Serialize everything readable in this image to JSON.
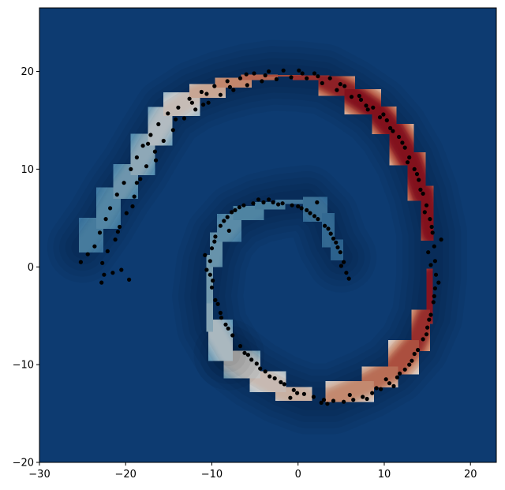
{
  "chart_data": {
    "type": "scatter",
    "title": "",
    "xlabel": "",
    "ylabel": "",
    "xlim": [
      -30,
      23
    ],
    "ylim": [
      -20,
      26.5
    ],
    "grid": false,
    "legend": "none",
    "colormap": "RdBu_r",
    "background_color": "#0d3b71",
    "point_color": "#000000",
    "x_ticks": [
      -30,
      -20,
      -10,
      0,
      10,
      20
    ],
    "y_ticks": [
      -20,
      -10,
      0,
      10,
      20
    ],
    "x_tick_labels": [
      "−30",
      "−20",
      "−10",
      "0",
      "10",
      "20"
    ],
    "y_tick_labels": [
      "−20",
      "−10",
      "0",
      "10",
      "20"
    ],
    "density_contours": {
      "description_levels": "filled density contours following the spiral arms",
      "ridge_outer": [
        [
          -25,
          2
        ],
        [
          -23,
          4.5
        ],
        [
          -21,
          7.5
        ],
        [
          -19,
          10
        ],
        [
          -17,
          13
        ],
        [
          -15,
          15.8
        ],
        [
          -12,
          17.5
        ],
        [
          -9,
          18.5
        ],
        [
          -6,
          19.2
        ],
        [
          -3,
          19.6
        ],
        [
          0,
          19.5
        ],
        [
          3,
          19.2
        ],
        [
          6,
          17.8
        ],
        [
          9,
          16
        ],
        [
          11,
          14
        ],
        [
          13,
          11
        ],
        [
          14.5,
          7.5
        ],
        [
          15.5,
          3.5
        ],
        [
          15.5,
          -1
        ],
        [
          15,
          -5
        ],
        [
          13.5,
          -8
        ],
        [
          11,
          -10.5
        ],
        [
          8,
          -12
        ],
        [
          4,
          -13.5
        ],
        [
          1,
          -13.5
        ],
        [
          -2,
          -12.5
        ],
        [
          -5,
          -11
        ],
        [
          -8,
          -9
        ]
      ],
      "ridge_inner": [
        [
          -8,
          -9
        ],
        [
          -10,
          -6
        ],
        [
          -10.5,
          -3
        ],
        [
          -10,
          0.5
        ],
        [
          -9,
          3
        ],
        [
          -7,
          5
        ],
        [
          -4.5,
          6
        ],
        [
          -2,
          6.5
        ],
        [
          1,
          6.8
        ],
        [
          3,
          5
        ],
        [
          4,
          2.5
        ],
        [
          5,
          1
        ]
      ],
      "arm_strength": [
        0.15,
        0.18,
        0.22,
        0.26,
        0.32,
        0.4,
        0.52,
        0.62,
        0.72,
        0.8,
        0.86,
        0.9,
        0.94,
        0.97,
        1.0,
        1.0,
        1.0,
        0.98,
        0.96,
        0.92,
        0.85,
        0.78,
        0.7,
        0.62,
        0.56,
        0.5,
        0.45,
        0.38
      ],
      "inner_strength": [
        0.38,
        0.3,
        0.26,
        0.24,
        0.22,
        0.2,
        0.18,
        0.16,
        0.14,
        0.12,
        0.1,
        0.08
      ]
    },
    "points": [
      [
        -25.2,
        0.5
      ],
      [
        -24.4,
        1.3
      ],
      [
        -23.6,
        2.1
      ],
      [
        -23.0,
        3.5
      ],
      [
        -22.8,
        -1.6
      ],
      [
        -22.7,
        0.4
      ],
      [
        -22.3,
        4.9
      ],
      [
        -22.1,
        1.6
      ],
      [
        -21.8,
        6.0
      ],
      [
        -21.5,
        -0.6
      ],
      [
        -21.2,
        2.8
      ],
      [
        -21.0,
        7.4
      ],
      [
        -20.7,
        4.1
      ],
      [
        -20.5,
        -0.3
      ],
      [
        -20.2,
        8.6
      ],
      [
        -19.9,
        5.5
      ],
      [
        -19.6,
        -1.3
      ],
      [
        -19.4,
        10.0
      ],
      [
        -19.0,
        7.2
      ],
      [
        -18.7,
        11.2
      ],
      [
        -18.3,
        9.0
      ],
      [
        -18.0,
        12.4
      ],
      [
        -17.6,
        10.3
      ],
      [
        -17.1,
        13.5
      ],
      [
        -16.6,
        11.8
      ],
      [
        -16.2,
        14.6
      ],
      [
        -15.6,
        12.9
      ],
      [
        -15.1,
        15.7
      ],
      [
        -14.5,
        14.0
      ],
      [
        -13.9,
        16.3
      ],
      [
        -13.2,
        15.2
      ],
      [
        -12.6,
        17.2
      ],
      [
        -11.9,
        16.1
      ],
      [
        -11.2,
        17.9
      ],
      [
        -10.4,
        16.8
      ],
      [
        -9.7,
        18.5
      ],
      [
        -9.0,
        17.6
      ],
      [
        -8.2,
        19.0
      ],
      [
        -7.5,
        18.1
      ],
      [
        -6.7,
        19.3
      ],
      [
        -5.9,
        18.6
      ],
      [
        -5.1,
        19.8
      ],
      [
        -4.2,
        19.0
      ],
      [
        -3.4,
        20.0
      ],
      [
        -2.5,
        19.2
      ],
      [
        -1.7,
        20.1
      ],
      [
        -0.8,
        19.4
      ],
      [
        0.1,
        20.1
      ],
      [
        1.0,
        19.3
      ],
      [
        1.9,
        19.8
      ],
      [
        2.8,
        18.8
      ],
      [
        3.7,
        19.3
      ],
      [
        4.5,
        18.1
      ],
      [
        5.4,
        18.5
      ],
      [
        6.2,
        17.4
      ],
      [
        7.1,
        17.5
      ],
      [
        7.9,
        16.5
      ],
      [
        8.7,
        16.3
      ],
      [
        9.5,
        15.3
      ],
      [
        10.3,
        15.0
      ],
      [
        11.0,
        13.9
      ],
      [
        11.7,
        13.3
      ],
      [
        12.4,
        12.2
      ],
      [
        12.9,
        11.2
      ],
      [
        13.5,
        10.0
      ],
      [
        14.0,
        8.9
      ],
      [
        14.5,
        7.5
      ],
      [
        14.9,
        6.3
      ],
      [
        15.3,
        4.9
      ],
      [
        15.6,
        3.5
      ],
      [
        15.8,
        2.1
      ],
      [
        15.9,
        0.6
      ],
      [
        16.0,
        -0.8
      ],
      [
        15.9,
        -2.2
      ],
      [
        15.7,
        -3.6
      ],
      [
        15.4,
        -4.9
      ],
      [
        15.0,
        -6.2
      ],
      [
        14.5,
        -7.4
      ],
      [
        13.9,
        -8.5
      ],
      [
        13.2,
        -9.6
      ],
      [
        12.4,
        -10.5
      ],
      [
        11.5,
        -11.3
      ],
      [
        10.6,
        -11.9
      ],
      [
        9.6,
        -12.5
      ],
      [
        8.6,
        -12.9
      ],
      [
        7.5,
        -13.3
      ],
      [
        6.4,
        -13.6
      ],
      [
        5.3,
        -13.8
      ],
      [
        4.1,
        -13.7
      ],
      [
        3.0,
        -13.6
      ],
      [
        1.8,
        -13.3
      ],
      [
        0.7,
        -13.0
      ],
      [
        -0.5,
        -12.6
      ],
      [
        -1.6,
        -12.0
      ],
      [
        -2.7,
        -11.4
      ],
      [
        -3.8,
        -10.7
      ],
      [
        -4.8,
        -9.9
      ],
      [
        -5.8,
        -9.0
      ],
      [
        -6.7,
        -8.1
      ],
      [
        -7.6,
        -7.0
      ],
      [
        -8.4,
        -5.9
      ],
      [
        -9.0,
        -4.7
      ],
      [
        -9.6,
        -3.4
      ],
      [
        -10.0,
        -2.1
      ],
      [
        -10.2,
        -0.8
      ],
      [
        -10.2,
        0.6
      ],
      [
        -10.0,
        1.9
      ],
      [
        -9.6,
        3.1
      ],
      [
        -9.0,
        4.2
      ],
      [
        -8.2,
        5.1
      ],
      [
        -7.3,
        5.8
      ],
      [
        -6.3,
        6.3
      ],
      [
        -5.2,
        6.5
      ],
      [
        -4.0,
        6.6
      ],
      [
        -2.9,
        6.6
      ],
      [
        -1.8,
        6.5
      ],
      [
        -0.7,
        6.3
      ],
      [
        0.4,
        6.0
      ],
      [
        1.4,
        5.5
      ],
      [
        2.3,
        4.9
      ],
      [
        3.1,
        4.2
      ],
      [
        3.8,
        3.4
      ],
      [
        4.4,
        2.5
      ],
      [
        4.9,
        1.5
      ],
      [
        5.3,
        0.5
      ],
      [
        5.6,
        -0.6
      ],
      [
        -18.7,
        8.6
      ],
      [
        -17.4,
        12.6
      ],
      [
        -14.2,
        15.1
      ],
      [
        -10.6,
        17.7
      ],
      [
        -7.9,
        18.4
      ],
      [
        -3.8,
        19.6
      ],
      [
        0.5,
        19.8
      ],
      [
        4.9,
        18.7
      ],
      [
        8.1,
        16.1
      ],
      [
        10.7,
        14.2
      ],
      [
        12.7,
        10.7
      ],
      [
        14.2,
        7.9
      ],
      [
        15.5,
        4.1
      ],
      [
        15.4,
        0.2
      ],
      [
        15.8,
        -3.0
      ],
      [
        14.9,
        -6.9
      ],
      [
        13.5,
        -8.9
      ],
      [
        11.8,
        -10.9
      ],
      [
        9.1,
        -12.4
      ],
      [
        6.0,
        -13.1
      ],
      [
        2.7,
        -13.9
      ],
      [
        -0.1,
        -12.9
      ],
      [
        -3.3,
        -11.2
      ],
      [
        -6.2,
        -8.8
      ],
      [
        -8.1,
        -6.3
      ],
      [
        -9.3,
        -3.8
      ],
      [
        -10.6,
        -0.3
      ],
      [
        -9.7,
        2.6
      ],
      [
        -8.6,
        4.7
      ],
      [
        -6.8,
        6.1
      ],
      [
        -4.6,
        6.9
      ],
      [
        -2.3,
        6.4
      ],
      [
        0.0,
        6.2
      ],
      [
        1.9,
        5.2
      ],
      [
        3.5,
        3.9
      ],
      [
        4.6,
        2.0
      ],
      [
        5.0,
        0.1
      ],
      [
        -16.5,
        10.9
      ],
      [
        -12.3,
        16.8
      ],
      [
        -6.0,
        19.7
      ],
      [
        2.3,
        19.5
      ],
      [
        9.9,
        15.6
      ],
      [
        13.8,
        9.5
      ],
      [
        15.1,
        1.5
      ],
      [
        15.2,
        -5.4
      ],
      [
        12.9,
        -10.0
      ],
      [
        8.0,
        -13.5
      ],
      [
        3.4,
        -14.0
      ],
      [
        -2.0,
        -11.8
      ],
      [
        -5.4,
        -9.5
      ],
      [
        -8.9,
        -5.2
      ],
      [
        -10.8,
        1.2
      ],
      [
        -7.7,
        5.6
      ],
      [
        -3.4,
        6.9
      ],
      [
        1.0,
        5.8
      ],
      [
        4.1,
        2.9
      ],
      [
        5.9,
        -1.2
      ],
      [
        -20.9,
        3.6
      ],
      [
        -22.5,
        -0.8
      ],
      [
        -19.2,
        6.2
      ],
      [
        12.1,
        12.7
      ],
      [
        14.7,
        5.6
      ],
      [
        16.3,
        -1.6
      ],
      [
        10.2,
        -11.5
      ],
      [
        -0.9,
        -13.4
      ],
      [
        -9.9,
        -1.4
      ],
      [
        -11.0,
        16.6
      ],
      [
        7.3,
        17.1
      ],
      [
        16.6,
        2.8
      ],
      [
        11.1,
        -12.2
      ],
      [
        -4.4,
        -10.4
      ],
      [
        -8.0,
        3.7
      ],
      [
        2.2,
        6.6
      ]
    ]
  }
}
